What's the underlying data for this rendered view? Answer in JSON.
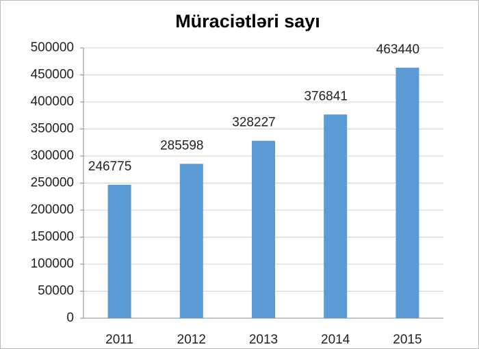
{
  "chart_data": {
    "type": "bar",
    "title": "Müraciətləri sayı",
    "categories": [
      "2011",
      "2012",
      "2013",
      "2014",
      "2015"
    ],
    "values": [
      246775,
      285598,
      328227,
      376841,
      463440
    ],
    "color": "#5b9bd5",
    "ylim": [
      0,
      500000
    ],
    "yticks": [
      0,
      50000,
      100000,
      150000,
      200000,
      250000,
      300000,
      350000,
      400000,
      450000,
      500000
    ],
    "grid": true
  }
}
